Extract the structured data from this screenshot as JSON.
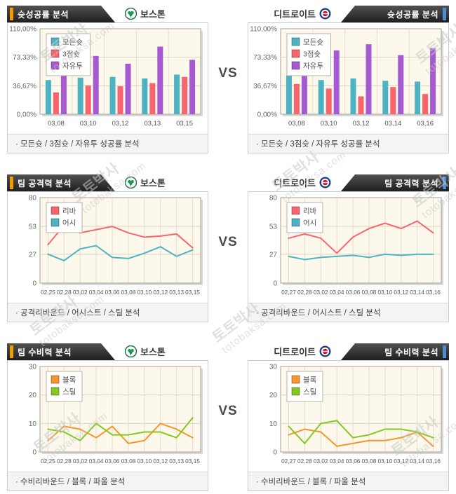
{
  "page": {
    "vs_label": "VS"
  },
  "watermark": {
    "line1": "토토박사",
    "line2": "totobaksa.com"
  },
  "colors": {
    "accent_orange": "#f39c00",
    "accent_blue": "#4a8fd4",
    "teal": "#4db3c3",
    "pink": "#fa646c",
    "purple": "#a55ad2",
    "orange_line": "#f7942d",
    "green_line": "#85c820"
  },
  "panels": [
    {
      "tab_title": "슛성공률 분석",
      "team": "보스톤",
      "caption": "· 모든슛 / 3점슛 / 자유투 성공률 분석"
    },
    {
      "tab_title": "슛성공률 분석",
      "team": "디트로이트",
      "caption": "· 모든슛 / 3점슛 / 자유투 성공률 분석"
    },
    {
      "tab_title": "팀 공격력 분석",
      "team": "보스톤",
      "caption": "· 공격리바운드 / 어시스트 / 스틸 분석"
    },
    {
      "tab_title": "팀 공격력 분석",
      "team": "디트로이트",
      "caption": "· 공격리바운드 / 어시스트 / 스틸 분석"
    },
    {
      "tab_title": "팀 수비력 분석",
      "team": "보스톤",
      "caption": "· 수비리바운드 / 블록 / 파울 분석"
    },
    {
      "tab_title": "팀 수비력 분석",
      "team": "디트로이트",
      "caption": "· 수비리바운드 / 블록 / 파울 분석"
    }
  ],
  "chart_data": [
    {
      "type": "bar",
      "title": "보스톤 슛성공률 분석",
      "categories": [
        "03,08",
        "03,10",
        "03,12",
        "03,13",
        "03,15"
      ],
      "series": [
        {
          "name": "모든슛",
          "color": "#4db3c3",
          "values": [
            44,
            47,
            48,
            46,
            51
          ]
        },
        {
          "name": "3점슛",
          "color": "#fa646c",
          "values": [
            28,
            37,
            36,
            40,
            48
          ]
        },
        {
          "name": "자유투",
          "color": "#a55ad2",
          "values": [
            58,
            75,
            65,
            87,
            70
          ]
        }
      ],
      "ylim": [
        0,
        110
      ],
      "yticks": [
        "0,00%",
        "36,67%",
        "73,33%",
        "110,00%"
      ],
      "ytick_values": [
        0,
        36.67,
        73.33,
        110
      ],
      "grid": true,
      "legend_position": "top-left"
    },
    {
      "type": "bar",
      "title": "디트로이트 슛성공률 분석",
      "categories": [
        "03,08",
        "03,10",
        "03,12",
        "03,14",
        "03,16"
      ],
      "series": [
        {
          "name": "모든슛",
          "color": "#4db3c3",
          "values": [
            50,
            44,
            46,
            43,
            42
          ]
        },
        {
          "name": "3점슛",
          "color": "#fa646c",
          "values": [
            39,
            33,
            23,
            35,
            26
          ]
        },
        {
          "name": "자유투",
          "color": "#a55ad2",
          "values": [
            57,
            82,
            90,
            76,
            85
          ]
        }
      ],
      "ylim": [
        0,
        110
      ],
      "yticks": [
        "0,00%",
        "36,67%",
        "73,33%",
        "110,00%"
      ],
      "ytick_values": [
        0,
        36.67,
        73.33,
        110
      ],
      "grid": true,
      "legend_position": "top-left"
    },
    {
      "type": "line",
      "title": "보스톤 팀 공격력 분석",
      "categories": [
        "02,25",
        "02,28",
        "03,02",
        "03,04",
        "03,06",
        "03,08",
        "03,10",
        "03,12",
        "03,13",
        "03,15"
      ],
      "series": [
        {
          "name": "리바",
          "color": "#fa646c",
          "values": [
            36,
            54,
            47,
            50,
            53,
            47,
            43,
            44,
            46,
            33
          ]
        },
        {
          "name": "어시",
          "color": "#4db3c3",
          "values": [
            27,
            21,
            32,
            35,
            24,
            23,
            28,
            34,
            25,
            31
          ]
        }
      ],
      "ylim": [
        0,
        80
      ],
      "yticks": [
        "0",
        "27",
        "53",
        "80"
      ],
      "ytick_values": [
        0,
        27,
        53,
        80
      ],
      "grid": true,
      "legend_position": "top-left"
    },
    {
      "type": "line",
      "title": "디트로이트 팀 공격력 분석",
      "categories": [
        "02,27",
        "02,28",
        "03,02",
        "03,04",
        "03,06",
        "03,08",
        "03,10",
        "03,12",
        "03,14",
        "03,16"
      ],
      "series": [
        {
          "name": "리바",
          "color": "#fa646c",
          "values": [
            42,
            46,
            42,
            28,
            43,
            51,
            56,
            51,
            58,
            47
          ]
        },
        {
          "name": "어시",
          "color": "#4db3c3",
          "values": [
            25,
            22,
            24,
            25,
            26,
            24,
            27,
            26,
            27,
            27
          ]
        }
      ],
      "ylim": [
        0,
        80
      ],
      "yticks": [
        "0",
        "27",
        "53",
        "80"
      ],
      "ytick_values": [
        0,
        27,
        53,
        80
      ],
      "grid": true,
      "legend_position": "top-left"
    },
    {
      "type": "line",
      "title": "보스톤 팀 수비력 분석",
      "categories": [
        "02,25",
        "02,28",
        "03,02",
        "03,04",
        "03,06",
        "03,08",
        "03,10",
        "03,12",
        "03,13",
        "03,15"
      ],
      "series": [
        {
          "name": "블록",
          "color": "#f7942d",
          "values": [
            4,
            9,
            8,
            5,
            9,
            3,
            4,
            10,
            8,
            5
          ]
        },
        {
          "name": "스틸",
          "color": "#85c820",
          "values": [
            8,
            7,
            4,
            10,
            6,
            6,
            7,
            7,
            5,
            12
          ]
        }
      ],
      "ylim": [
        0,
        30
      ],
      "yticks": [
        "0",
        "10",
        "20",
        "30"
      ],
      "ytick_values": [
        0,
        10,
        20,
        30
      ],
      "grid": true,
      "legend_position": "top-left"
    },
    {
      "type": "line",
      "title": "디트로이트 팀 수비력 분석",
      "categories": [
        "02,27",
        "02,28",
        "03,02",
        "03,04",
        "03,06",
        "03,08",
        "03,10",
        "03,12",
        "03,14",
        "03,16"
      ],
      "series": [
        {
          "name": "블록",
          "color": "#f7942d",
          "values": [
            6,
            8,
            7,
            2,
            3,
            4,
            4,
            5,
            7,
            2
          ]
        },
        {
          "name": "스틸",
          "color": "#85c820",
          "values": [
            9,
            3,
            10,
            11,
            5,
            6,
            8,
            8,
            7,
            5
          ]
        }
      ],
      "ylim": [
        0,
        30
      ],
      "yticks": [
        "0",
        "10",
        "20",
        "30"
      ],
      "ytick_values": [
        0,
        10,
        20,
        30
      ],
      "grid": true,
      "legend_position": "top-left"
    }
  ]
}
